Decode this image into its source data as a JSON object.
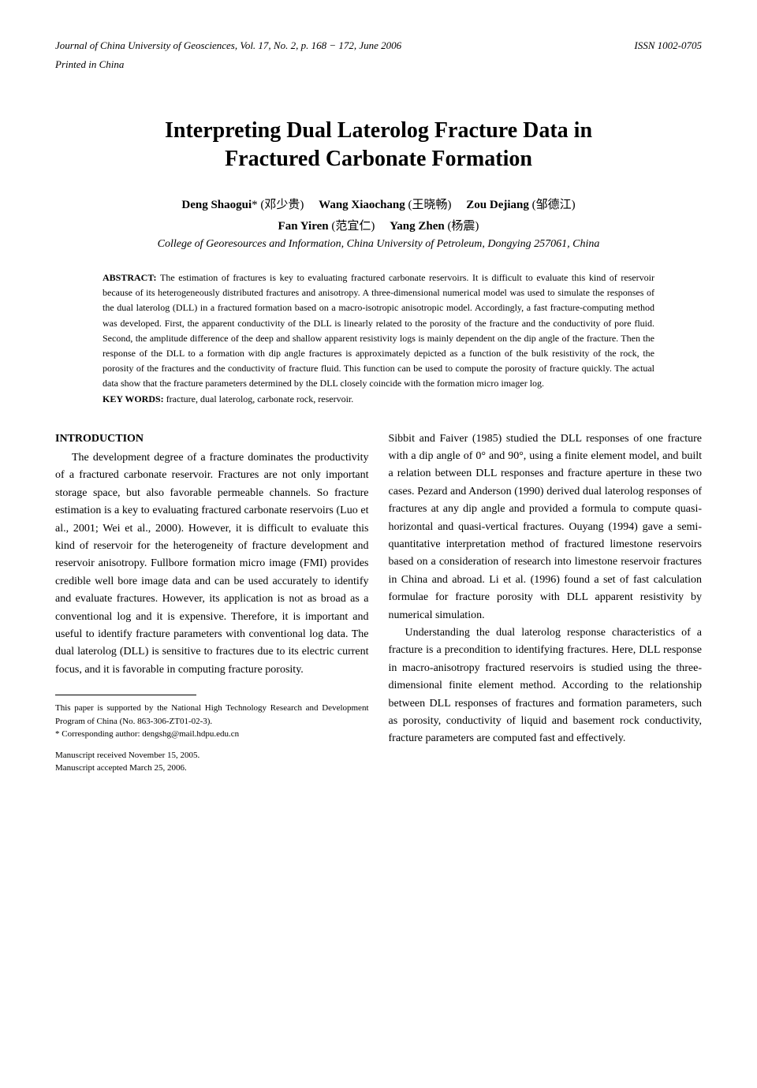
{
  "header": {
    "journal": "Journal of China University of Geosciences, Vol. 17, No. 2, p. 168 − 172, June 2006",
    "issn": "ISSN 1002-0705",
    "printed": "Printed in China"
  },
  "title": {
    "line1": "Interpreting Dual Laterolog Fracture Data in",
    "line2": "Fractured Carbonate Formation"
  },
  "authors": {
    "line1_html": "Deng Shaogui* (邓少贵) Wang Xiaochang (王晓畅) Zou Dejiang (邹德江)",
    "line2_html": "Fan Yiren (范宜仁) Yang Zhen (杨震)",
    "a1": "Deng Shaogui",
    "a1c": "* (邓少贵)",
    "a2": "Wang Xiaochang",
    "a2c": " (王晓畅)",
    "a3": "Zou Dejiang",
    "a3c": " (邹德江)",
    "a4": "Fan Yiren",
    "a4c": " (范宜仁)",
    "a5": "Yang Zhen",
    "a5c": " (杨震)"
  },
  "affiliation": "College of Georesources and Information, China University of Petroleum, Dongying 257061, China",
  "abstract": {
    "label": "ABSTRACT: ",
    "text": "The estimation of fractures is key to evaluating fractured carbonate reservoirs. It is difficult to evaluate this kind of reservoir because of its heterogeneously distributed fractures and anisotropy. A three-dimensional numerical model was used to simulate the responses of the dual laterolog (DLL) in a fractured formation based on a macro-isotropic anisotropic model. Accordingly, a fast fracture-computing method was developed. First, the apparent conductivity of the DLL is linearly related to the porosity of the fracture and the conductivity of pore fluid. Second, the amplitude difference of the deep and shallow apparent resistivity logs is mainly dependent on the dip angle of the fracture. Then the response of the DLL to a formation with dip angle fractures is approximately depicted as a function of the bulk resistivity of the rock, the porosity of the fractures and the conductivity of fracture fluid. This function can be used to compute the porosity of fracture quickly. The actual data show that the fracture parameters determined by the DLL closely coincide with the formation micro imager log."
  },
  "keywords": {
    "label": "KEY WORDS: ",
    "text": "fracture, dual laterolog, carbonate rock, reservoir."
  },
  "body": {
    "intro_heading": "INTRODUCTION",
    "left_para": "The development degree of a fracture dominates the productivity of a fractured carbonate reservoir. Fractures are not only important storage space, but also favorable permeable channels. So fracture estimation is a key to evaluating fractured carbonate reservoirs (Luo et al., 2001; Wei et al., 2000). However, it is difficult to evaluate this kind of reservoir for the heterogeneity of fracture development and reservoir anisotropy. Fullbore formation micro image (FMI) provides credible well bore image data and can be used accurately to identify and evaluate fractures. However, its application is not as broad as a conventional log and it is expensive. Therefore, it is important and useful to identify fracture parameters with conventional log data. The dual laterolog (DLL) is sensitive to fractures due to its electric current focus, and it is favorable in computing fracture porosity.",
    "right_para1": "Sibbit and Faiver (1985) studied the DLL responses of one fracture with a dip angle of 0° and 90°, using a finite element model, and built a relation between DLL responses and fracture aperture in these two cases. Pezard and Anderson (1990) derived dual laterolog responses of fractures at any dip angle and provided a formula to compute quasi-horizontal and quasi-vertical fractures. Ouyang (1994) gave a semi-quantitative interpretation method of fractured limestone reservoirs based on a consideration of research into limestone reservoir fractures in China and abroad. Li et al. (1996) found a set of fast calculation formulae for fracture porosity with DLL apparent resistivity by numerical simulation.",
    "right_para2": "Understanding the dual laterolog response characteristics of a fracture is a precondition to identifying fractures. Here, DLL response in macro-anisotropy fractured reservoirs is studied using the three-dimensional finite element method. According to the relationship between DLL responses of fractures and formation parameters, such as porosity, conductivity of liquid and basement rock conductivity, fracture parameters are computed fast and effectively."
  },
  "footnotes": {
    "f1": "This paper is supported by the National High Technology Research and Development Program of China (No. 863-306-ZT01-02-3).",
    "f2": "* Corresponding author: dengshg@mail.hdpu.edu.cn",
    "f3": "Manuscript received November 15, 2005.",
    "f4": "Manuscript accepted March 25, 2006."
  }
}
